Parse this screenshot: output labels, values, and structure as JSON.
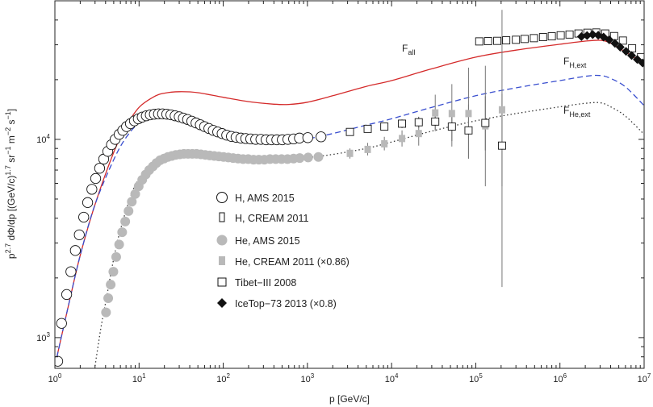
{
  "chart_data": {
    "type": "scatter",
    "title": "",
    "xscale": "log",
    "yscale": "log",
    "xlim": [
      1,
      10000000
    ],
    "ylim": [
      700,
      50000
    ],
    "xlabel": "p [GeV/c]",
    "ylabel": "p^2.7 dΦ/dp [(GeV/c)^1.7 sr^-1 m^-2 s^-1]",
    "ylabel_parts": {
      "p": "p",
      "exp27": "2.7",
      "body": " dΦ/dp [(GeV/c)",
      "exp17": "1.7",
      "sr": " sr",
      "m1": "−1",
      "m": " m",
      "m2": "−2",
      "s": " s",
      "m3": "−1",
      "close": "]"
    },
    "x_ticks": [
      {
        "value": 1,
        "base": "10",
        "exp": "0"
      },
      {
        "value": 10,
        "base": "10",
        "exp": "1"
      },
      {
        "value": 100,
        "base": "10",
        "exp": "2"
      },
      {
        "value": 1000,
        "base": "10",
        "exp": "3"
      },
      {
        "value": 10000,
        "base": "10",
        "exp": "4"
      },
      {
        "value": 100000,
        "base": "10",
        "exp": "5"
      },
      {
        "value": 1000000,
        "base": "10",
        "exp": "6"
      },
      {
        "value": 10000000,
        "base": "10",
        "exp": "7"
      }
    ],
    "y_ticks": [
      {
        "value": 1000,
        "base": "10",
        "exp": "3"
      },
      {
        "value": 10000,
        "base": "10",
        "exp": "4"
      }
    ],
    "curves": [
      {
        "name": "F_all",
        "label_main": "F",
        "label_sub": "all",
        "color": "#d42a2a",
        "dash": "",
        "width": 1.3,
        "points": [
          [
            1,
            720
          ],
          [
            1.5,
            1550
          ],
          [
            2,
            2600
          ],
          [
            3,
            4700
          ],
          [
            5,
            8600
          ],
          [
            7,
            11600
          ],
          [
            10,
            14500
          ],
          [
            15,
            16400
          ],
          [
            20,
            17100
          ],
          [
            30,
            17400
          ],
          [
            50,
            17200
          ],
          [
            100,
            16300
          ],
          [
            200,
            15500
          ],
          [
            400,
            15050
          ],
          [
            600,
            15000
          ],
          [
            1000,
            15400
          ],
          [
            2000,
            16600
          ],
          [
            5000,
            18500
          ],
          [
            10000,
            19800
          ],
          [
            30000,
            22700
          ],
          [
            100000,
            26000
          ],
          [
            300000,
            28200
          ],
          [
            1000000,
            30200
          ],
          [
            2000000,
            31300
          ],
          [
            3000000,
            31600
          ],
          [
            4000000,
            30600
          ],
          [
            6000000,
            27600
          ],
          [
            10000000,
            24200
          ]
        ]
      },
      {
        "name": "F_H,ext",
        "label_main": "F",
        "label_sub": "H,ext",
        "color": "#3a4fcf",
        "dash": "7,4",
        "width": 1.3,
        "points": [
          [
            1,
            720
          ],
          [
            1.5,
            1550
          ],
          [
            2,
            2600
          ],
          [
            3,
            4700
          ],
          [
            5,
            7900
          ],
          [
            7,
            10200
          ],
          [
            10,
            12100
          ],
          [
            15,
            13100
          ],
          [
            20,
            13300
          ],
          [
            30,
            13100
          ],
          [
            50,
            12300
          ],
          [
            100,
            11200
          ],
          [
            200,
            10500
          ],
          [
            500,
            10000
          ],
          [
            1000,
            10100
          ],
          [
            2000,
            10700
          ],
          [
            5000,
            11800
          ],
          [
            10000,
            12700
          ],
          [
            30000,
            14500
          ],
          [
            100000,
            16600
          ],
          [
            300000,
            18200
          ],
          [
            1000000,
            19800
          ],
          [
            2000000,
            20800
          ],
          [
            3000000,
            21000
          ],
          [
            4000000,
            20300
          ],
          [
            6000000,
            18400
          ],
          [
            10000000,
            14800
          ]
        ]
      },
      {
        "name": "F_He,ext",
        "label_main": "F",
        "label_sub": "He,ext",
        "color": "#333333",
        "dash": "1.5,3",
        "width": 1.3,
        "points": [
          [
            3,
            720
          ],
          [
            3.5,
            1100
          ],
          [
            4,
            1500
          ],
          [
            5,
            2500
          ],
          [
            6,
            3500
          ],
          [
            8,
            5200
          ],
          [
            10,
            6300
          ],
          [
            15,
            7450
          ],
          [
            20,
            7950
          ],
          [
            30,
            8300
          ],
          [
            50,
            8500
          ],
          [
            100,
            8450
          ],
          [
            200,
            8200
          ],
          [
            500,
            8000
          ],
          [
            1000,
            8100
          ],
          [
            2000,
            8400
          ],
          [
            5000,
            9000
          ],
          [
            10000,
            9700
          ],
          [
            30000,
            11000
          ],
          [
            100000,
            12400
          ],
          [
            300000,
            13500
          ],
          [
            1000000,
            14600
          ],
          [
            2000000,
            15200
          ],
          [
            3000000,
            15300
          ],
          [
            4000000,
            14600
          ],
          [
            6000000,
            13100
          ],
          [
            10000000,
            10600
          ]
        ]
      }
    ],
    "series": [
      {
        "name": "H, AMS 2015",
        "marker": "open-circle",
        "points": [
          [
            1.08,
            760
          ],
          [
            1.2,
            1180
          ],
          [
            1.38,
            1650
          ],
          [
            1.55,
            2150
          ],
          [
            1.75,
            2750
          ],
          [
            1.95,
            3300
          ],
          [
            2.2,
            4050
          ],
          [
            2.45,
            4800
          ],
          [
            2.75,
            5600
          ],
          [
            3.05,
            6350
          ],
          [
            3.4,
            7150
          ],
          [
            3.8,
            7950
          ],
          [
            4.25,
            8700
          ],
          [
            4.7,
            9400
          ],
          [
            5.2,
            10000
          ],
          [
            5.8,
            10600
          ],
          [
            6.4,
            11100
          ],
          [
            7.1,
            11600
          ],
          [
            7.9,
            12000
          ],
          [
            8.8,
            12400
          ],
          [
            9.8,
            12700
          ],
          [
            10.9,
            12950
          ],
          [
            12.2,
            13150
          ],
          [
            13.6,
            13300
          ],
          [
            15.2,
            13400
          ],
          [
            17,
            13450
          ],
          [
            19,
            13450
          ],
          [
            21.3,
            13400
          ],
          [
            23.9,
            13300
          ],
          [
            26.8,
            13150
          ],
          [
            30,
            13000
          ],
          [
            33.6,
            12800
          ],
          [
            37.7,
            12600
          ],
          [
            42.3,
            12350
          ],
          [
            47.5,
            12100
          ],
          [
            53.4,
            11850
          ],
          [
            60,
            11600
          ],
          [
            67.5,
            11350
          ],
          [
            76,
            11100
          ],
          [
            86,
            10900
          ],
          [
            97,
            10700
          ],
          [
            110,
            10500
          ],
          [
            125,
            10350
          ],
          [
            142,
            10250
          ],
          [
            162,
            10150
          ],
          [
            185,
            10100
          ],
          [
            212,
            10050
          ],
          [
            243,
            10000
          ],
          [
            280,
            10000
          ],
          [
            323,
            9950
          ],
          [
            374,
            9950
          ],
          [
            433,
            9950
          ],
          [
            503,
            9950
          ],
          [
            586,
            10000
          ],
          [
            685,
            10050
          ],
          [
            804,
            10150
          ],
          [
            1010,
            10200
          ],
          [
            1450,
            10300
          ]
        ]
      },
      {
        "name": "H, CREAM 2011",
        "marker": "open-square",
        "points": [
          [
            3200,
            10900
          ],
          [
            5200,
            11300
          ],
          [
            8200,
            11600
          ],
          [
            13300,
            12000
          ],
          [
            21000,
            12200
          ],
          [
            33000,
            12300
          ],
          [
            52000,
            11600
          ],
          [
            82000,
            11100
          ],
          [
            130000,
            12100
          ],
          [
            205000,
            9300
          ]
        ],
        "errors": [
          [
            3200,
            10500,
            11300
          ],
          [
            5200,
            10900,
            11700
          ],
          [
            8200,
            11100,
            12100
          ],
          [
            13300,
            11400,
            12600
          ],
          [
            21000,
            11400,
            13000
          ],
          [
            33000,
            11200,
            13500
          ],
          [
            52000,
            9800,
            13500
          ],
          [
            82000,
            8000,
            15000
          ],
          [
            130000,
            8800,
            16500
          ],
          [
            205000,
            5800,
            17000
          ]
        ]
      },
      {
        "name": "He, AMS 2015",
        "marker": "filled-circle",
        "points": [
          [
            4.05,
            1340
          ],
          [
            4.3,
            1580
          ],
          [
            4.6,
            1850
          ],
          [
            4.95,
            2150
          ],
          [
            5.35,
            2550
          ],
          [
            5.8,
            2950
          ],
          [
            6.3,
            3400
          ],
          [
            6.85,
            3850
          ],
          [
            7.5,
            4350
          ],
          [
            8.2,
            4850
          ],
          [
            9,
            5300
          ],
          [
            9.9,
            5800
          ],
          [
            10.9,
            6250
          ],
          [
            12,
            6650
          ],
          [
            13.2,
            7000
          ],
          [
            14.6,
            7300
          ],
          [
            16.1,
            7600
          ],
          [
            17.8,
            7850
          ],
          [
            19.8,
            8000
          ],
          [
            22,
            8150
          ],
          [
            24.5,
            8250
          ],
          [
            27.3,
            8350
          ],
          [
            30.5,
            8400
          ],
          [
            34.1,
            8450
          ],
          [
            38.2,
            8450
          ],
          [
            42.9,
            8450
          ],
          [
            48.2,
            8450
          ],
          [
            54.3,
            8400
          ],
          [
            61.2,
            8350
          ],
          [
            69.2,
            8300
          ],
          [
            78.3,
            8250
          ],
          [
            88.8,
            8200
          ],
          [
            101,
            8150
          ],
          [
            115,
            8100
          ],
          [
            131,
            8050
          ],
          [
            150,
            8000
          ],
          [
            172,
            7950
          ],
          [
            198,
            7950
          ],
          [
            229,
            7900
          ],
          [
            265,
            7900
          ],
          [
            308,
            7900
          ],
          [
            359,
            7950
          ],
          [
            420,
            7950
          ],
          [
            493,
            7950
          ],
          [
            580,
            7950
          ],
          [
            685,
            8000
          ],
          [
            810,
            8050
          ],
          [
            1020,
            8100
          ],
          [
            1350,
            8150
          ]
        ]
      },
      {
        "name": "He, CREAM 2011 (×0.86)",
        "marker": "filled-square",
        "points": [
          [
            3200,
            8500
          ],
          [
            5200,
            8900
          ],
          [
            8200,
            9500
          ],
          [
            13300,
            10100
          ],
          [
            21000,
            10700
          ],
          [
            33000,
            13600
          ],
          [
            52000,
            13500
          ],
          [
            82000,
            13500
          ],
          [
            130000,
            11700
          ],
          [
            205000,
            14100
          ]
        ],
        "errors": [
          [
            3200,
            8000,
            9000
          ],
          [
            5200,
            8300,
            9600
          ],
          [
            8200,
            8800,
            10300
          ],
          [
            13300,
            9200,
            11100
          ],
          [
            21000,
            9300,
            12300
          ],
          [
            33000,
            11000,
            16800
          ],
          [
            52000,
            9200,
            19000
          ],
          [
            82000,
            8000,
            23000
          ],
          [
            130000,
            5800,
            23500
          ],
          [
            205000,
            1800,
            45000
          ]
        ]
      },
      {
        "name": "Tibet−III 2008",
        "marker": "open-square",
        "points": [
          [
            110000,
            31200
          ],
          [
            140000,
            31300
          ],
          [
            180000,
            31400
          ],
          [
            230000,
            31600
          ],
          [
            300000,
            31800
          ],
          [
            380000,
            32100
          ],
          [
            490000,
            32400
          ],
          [
            630000,
            32800
          ],
          [
            800000,
            33100
          ],
          [
            1020000,
            33500
          ],
          [
            1300000,
            33800
          ],
          [
            1660000,
            34200
          ],
          [
            2120000,
            34500
          ],
          [
            2700000,
            34600
          ],
          [
            3450000,
            34200
          ],
          [
            4400000,
            33200
          ],
          [
            5600000,
            31500
          ],
          [
            7200000,
            28800
          ],
          [
            9200000,
            26000
          ]
        ]
      },
      {
        "name": "IceTop−73 2013 (×0.8)",
        "marker": "filled-diamond",
        "points": [
          [
            1800000,
            33000
          ],
          [
            2100000,
            33400
          ],
          [
            2450000,
            33800
          ],
          [
            2850000,
            33500
          ],
          [
            3300000,
            32800
          ],
          [
            3850000,
            31800
          ],
          [
            4500000,
            30500
          ],
          [
            5200000,
            29200
          ],
          [
            6100000,
            27800
          ],
          [
            7100000,
            26500
          ],
          [
            8300000,
            25300
          ],
          [
            9600000,
            24300
          ]
        ]
      }
    ]
  }
}
